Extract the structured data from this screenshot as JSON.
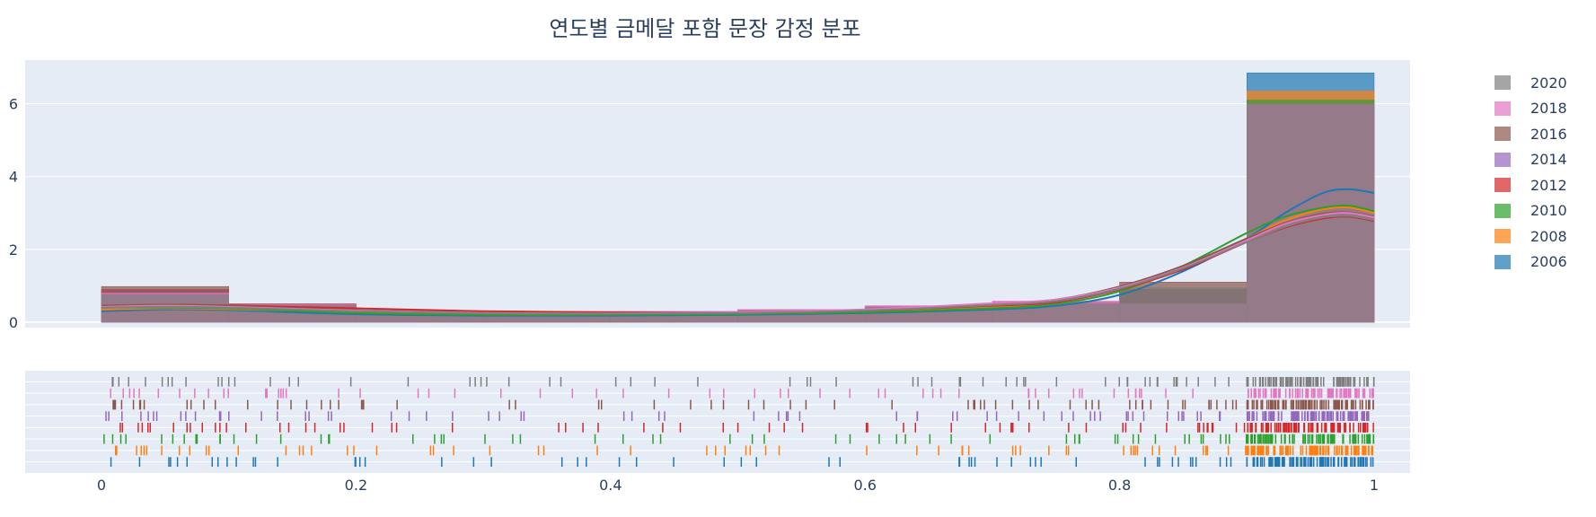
{
  "chart_data": {
    "type": "histogram-density-rug",
    "title": "연도별 금메달 포함 문장 감정 분포",
    "xlim": [
      -0.06,
      1.06
    ],
    "ylim": [
      -0.15,
      7.2
    ],
    "x_ticks": [
      "0",
      "0.2",
      "0.4",
      "0.6",
      "0.8",
      "1"
    ],
    "x_tick_values": [
      0,
      0.2,
      0.4,
      0.6,
      0.8,
      1
    ],
    "y_ticks": [
      "0",
      "2",
      "4",
      "6"
    ],
    "y_tick_values": [
      0,
      2,
      4,
      6
    ],
    "bin_edges": [
      0,
      0.1,
      0.2,
      0.3,
      0.4,
      0.5,
      0.6,
      0.7,
      0.8,
      0.9,
      1.0
    ],
    "legend_position": "right",
    "series": [
      {
        "name": "2006",
        "color": "#1f77b4",
        "hist": [
          0.65,
          0.45,
          0.25,
          0.25,
          0.25,
          0.3,
          0.35,
          0.4,
          0.75,
          6.85
        ],
        "density": [
          [
            0,
            0.3
          ],
          [
            0.05,
            0.35
          ],
          [
            0.1,
            0.33
          ],
          [
            0.2,
            0.22
          ],
          [
            0.3,
            0.18
          ],
          [
            0.4,
            0.18
          ],
          [
            0.5,
            0.2
          ],
          [
            0.6,
            0.25
          ],
          [
            0.7,
            0.35
          ],
          [
            0.75,
            0.45
          ],
          [
            0.8,
            0.75
          ],
          [
            0.85,
            1.4
          ],
          [
            0.9,
            2.3
          ],
          [
            0.93,
            3.0
          ],
          [
            0.96,
            3.55
          ],
          [
            0.98,
            3.65
          ],
          [
            1.0,
            3.55
          ]
        ]
      },
      {
        "name": "2008",
        "color": "#ff7f0e",
        "hist": [
          0.75,
          0.5,
          0.3,
          0.3,
          0.3,
          0.3,
          0.4,
          0.45,
          0.9,
          6.35
        ],
        "density": [
          [
            0,
            0.35
          ],
          [
            0.05,
            0.38
          ],
          [
            0.1,
            0.36
          ],
          [
            0.2,
            0.27
          ],
          [
            0.3,
            0.22
          ],
          [
            0.4,
            0.21
          ],
          [
            0.5,
            0.23
          ],
          [
            0.6,
            0.28
          ],
          [
            0.7,
            0.4
          ],
          [
            0.75,
            0.5
          ],
          [
            0.8,
            0.85
          ],
          [
            0.85,
            1.5
          ],
          [
            0.9,
            2.3
          ],
          [
            0.93,
            2.8
          ],
          [
            0.96,
            3.1
          ],
          [
            0.98,
            3.15
          ],
          [
            1.0,
            3.0
          ]
        ]
      },
      {
        "name": "2010",
        "color": "#2ca02c",
        "hist": [
          0.85,
          0.45,
          0.28,
          0.28,
          0.28,
          0.3,
          0.4,
          0.45,
          0.85,
          6.1
        ],
        "density": [
          [
            0,
            0.4
          ],
          [
            0.05,
            0.4
          ],
          [
            0.1,
            0.38
          ],
          [
            0.2,
            0.25
          ],
          [
            0.3,
            0.2
          ],
          [
            0.4,
            0.2
          ],
          [
            0.5,
            0.22
          ],
          [
            0.6,
            0.27
          ],
          [
            0.7,
            0.38
          ],
          [
            0.75,
            0.5
          ],
          [
            0.8,
            0.85
          ],
          [
            0.85,
            1.55
          ],
          [
            0.9,
            2.45
          ],
          [
            0.93,
            2.9
          ],
          [
            0.96,
            3.15
          ],
          [
            0.98,
            3.2
          ],
          [
            1.0,
            3.05
          ]
        ]
      },
      {
        "name": "2012",
        "color": "#d62728",
        "hist": [
          0.9,
          0.5,
          0.3,
          0.3,
          0.3,
          0.32,
          0.42,
          0.5,
          0.9,
          6.0
        ],
        "density": [
          [
            0,
            0.45
          ],
          [
            0.05,
            0.48
          ],
          [
            0.1,
            0.46
          ],
          [
            0.2,
            0.38
          ],
          [
            0.3,
            0.3
          ],
          [
            0.4,
            0.27
          ],
          [
            0.5,
            0.27
          ],
          [
            0.6,
            0.32
          ],
          [
            0.7,
            0.45
          ],
          [
            0.75,
            0.55
          ],
          [
            0.8,
            0.9
          ],
          [
            0.85,
            1.45
          ],
          [
            0.9,
            2.2
          ],
          [
            0.93,
            2.6
          ],
          [
            0.96,
            2.85
          ],
          [
            0.98,
            2.9
          ],
          [
            1.0,
            2.78
          ]
        ]
      },
      {
        "name": "2014",
        "color": "#9467bd",
        "hist": [
          0.85,
          0.5,
          0.3,
          0.3,
          0.3,
          0.33,
          0.45,
          0.55,
          0.85,
          6.0
        ],
        "density": [
          [
            0,
            0.42
          ],
          [
            0.05,
            0.45
          ],
          [
            0.1,
            0.42
          ],
          [
            0.2,
            0.32
          ],
          [
            0.3,
            0.25
          ],
          [
            0.4,
            0.24
          ],
          [
            0.5,
            0.26
          ],
          [
            0.6,
            0.33
          ],
          [
            0.7,
            0.48
          ],
          [
            0.75,
            0.58
          ],
          [
            0.8,
            0.92
          ],
          [
            0.85,
            1.5
          ],
          [
            0.9,
            2.25
          ],
          [
            0.93,
            2.7
          ],
          [
            0.96,
            2.95
          ],
          [
            0.98,
            3.0
          ],
          [
            1.0,
            2.88
          ]
        ]
      },
      {
        "name": "2016",
        "color": "#8c564b",
        "hist": [
          0.98,
          0.5,
          0.3,
          0.3,
          0.3,
          0.33,
          0.42,
          0.55,
          1.1,
          6.0
        ],
        "density": [
          [
            0,
            0.45
          ],
          [
            0.05,
            0.48
          ],
          [
            0.1,
            0.45
          ],
          [
            0.2,
            0.33
          ],
          [
            0.3,
            0.26
          ],
          [
            0.4,
            0.25
          ],
          [
            0.5,
            0.27
          ],
          [
            0.6,
            0.34
          ],
          [
            0.7,
            0.5
          ],
          [
            0.75,
            0.62
          ],
          [
            0.8,
            0.98
          ],
          [
            0.85,
            1.55
          ],
          [
            0.9,
            2.3
          ],
          [
            0.93,
            2.72
          ],
          [
            0.96,
            2.98
          ],
          [
            0.98,
            3.02
          ],
          [
            1.0,
            2.9
          ]
        ]
      },
      {
        "name": "2018",
        "color": "#e377c2",
        "hist": [
          0.8,
          0.48,
          0.3,
          0.3,
          0.3,
          0.35,
          0.45,
          0.58,
          0.5,
          6.0
        ],
        "density": [
          [
            0,
            0.42
          ],
          [
            0.05,
            0.45
          ],
          [
            0.1,
            0.42
          ],
          [
            0.2,
            0.32
          ],
          [
            0.3,
            0.25
          ],
          [
            0.4,
            0.24
          ],
          [
            0.5,
            0.27
          ],
          [
            0.6,
            0.35
          ],
          [
            0.7,
            0.52
          ],
          [
            0.75,
            0.62
          ],
          [
            0.8,
            0.95
          ],
          [
            0.85,
            1.5
          ],
          [
            0.9,
            2.25
          ],
          [
            0.93,
            2.7
          ],
          [
            0.96,
            2.95
          ],
          [
            0.98,
            3.0
          ],
          [
            1.0,
            2.88
          ]
        ]
      },
      {
        "name": "2020",
        "color": "#7f7f7f",
        "hist": [
          0.75,
          0.45,
          0.28,
          0.28,
          0.28,
          0.3,
          0.4,
          0.5,
          0.95,
          6.0
        ],
        "density": [
          [
            0,
            0.4
          ],
          [
            0.05,
            0.42
          ],
          [
            0.1,
            0.4
          ],
          [
            0.2,
            0.3
          ],
          [
            0.3,
            0.24
          ],
          [
            0.4,
            0.23
          ],
          [
            0.5,
            0.25
          ],
          [
            0.6,
            0.32
          ],
          [
            0.7,
            0.47
          ],
          [
            0.75,
            0.58
          ],
          [
            0.8,
            0.92
          ],
          [
            0.85,
            1.48
          ],
          [
            0.9,
            2.2
          ],
          [
            0.93,
            2.62
          ],
          [
            0.96,
            2.88
          ],
          [
            0.98,
            2.92
          ],
          [
            1.0,
            2.8
          ]
        ]
      }
    ]
  }
}
